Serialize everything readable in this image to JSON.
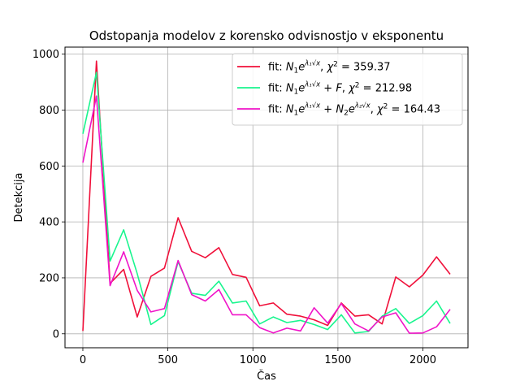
{
  "chart_data": {
    "type": "line",
    "title": "Odstopanja modelov z korensko odvisnostjo v eksponentu",
    "xlabel": "Čas",
    "ylabel": "Detekcija",
    "xlim": [
      -105,
      2265
    ],
    "ylim": [
      -50,
      1025
    ],
    "xticks": [
      0,
      500,
      1000,
      1500,
      2000
    ],
    "yticks": [
      0,
      200,
      400,
      600,
      800,
      1000
    ],
    "grid": true,
    "legend_position": "top-right",
    "x": [
      0,
      80,
      160,
      240,
      320,
      400,
      480,
      560,
      640,
      720,
      800,
      880,
      960,
      1040,
      1120,
      1200,
      1280,
      1360,
      1440,
      1520,
      1600,
      1680,
      1760,
      1840,
      1920,
      2000,
      2080,
      2160
    ],
    "series": [
      {
        "name": "fit: N₁e^{λ₁√x}, χ² = 359.37",
        "legend_parts": [
          "fit: ",
          "N",
          "1",
          "e",
          "λ₁√x",
          ", ",
          "χ",
          "2",
          " = 359.37"
        ],
        "color": "#f0103a",
        "values": [
          10,
          975,
          180,
          230,
          60,
          205,
          235,
          415,
          295,
          272,
          308,
          212,
          202,
          100,
          110,
          70,
          63,
          50,
          30,
          110,
          63,
          68,
          35,
          203,
          168,
          210,
          275,
          213
        ]
      },
      {
        "name": "fit: N₁e^{λ₁√x} + F, χ² = 212.98",
        "legend_parts": [
          "fit: ",
          "N",
          "1",
          "e",
          "λ₁√x",
          " + ",
          "F",
          ", ",
          "χ",
          "2",
          " = 212.98"
        ],
        "color": "#19f58e",
        "values": [
          715,
          935,
          260,
          372,
          215,
          33,
          65,
          258,
          145,
          137,
          188,
          110,
          117,
          35,
          60,
          40,
          48,
          33,
          15,
          68,
          3,
          8,
          63,
          90,
          37,
          65,
          117,
          37
        ]
      },
      {
        "name": "fit: N₁e^{λ₁√x} + N₂e^{λ₂√x}, χ² = 164.43",
        "legend_parts": [
          "fit: ",
          "N",
          "1",
          "e",
          "λ₁√x",
          " + ",
          "N",
          "2",
          "e",
          "λ₂√x",
          ", ",
          "χ",
          "2",
          " = 164.43"
        ],
        "color": "#f014c8",
        "values": [
          612,
          850,
          172,
          293,
          155,
          78,
          90,
          262,
          140,
          117,
          158,
          68,
          68,
          22,
          3,
          20,
          10,
          93,
          38,
          108,
          35,
          10,
          60,
          75,
          2,
          3,
          25,
          87
        ]
      }
    ]
  }
}
